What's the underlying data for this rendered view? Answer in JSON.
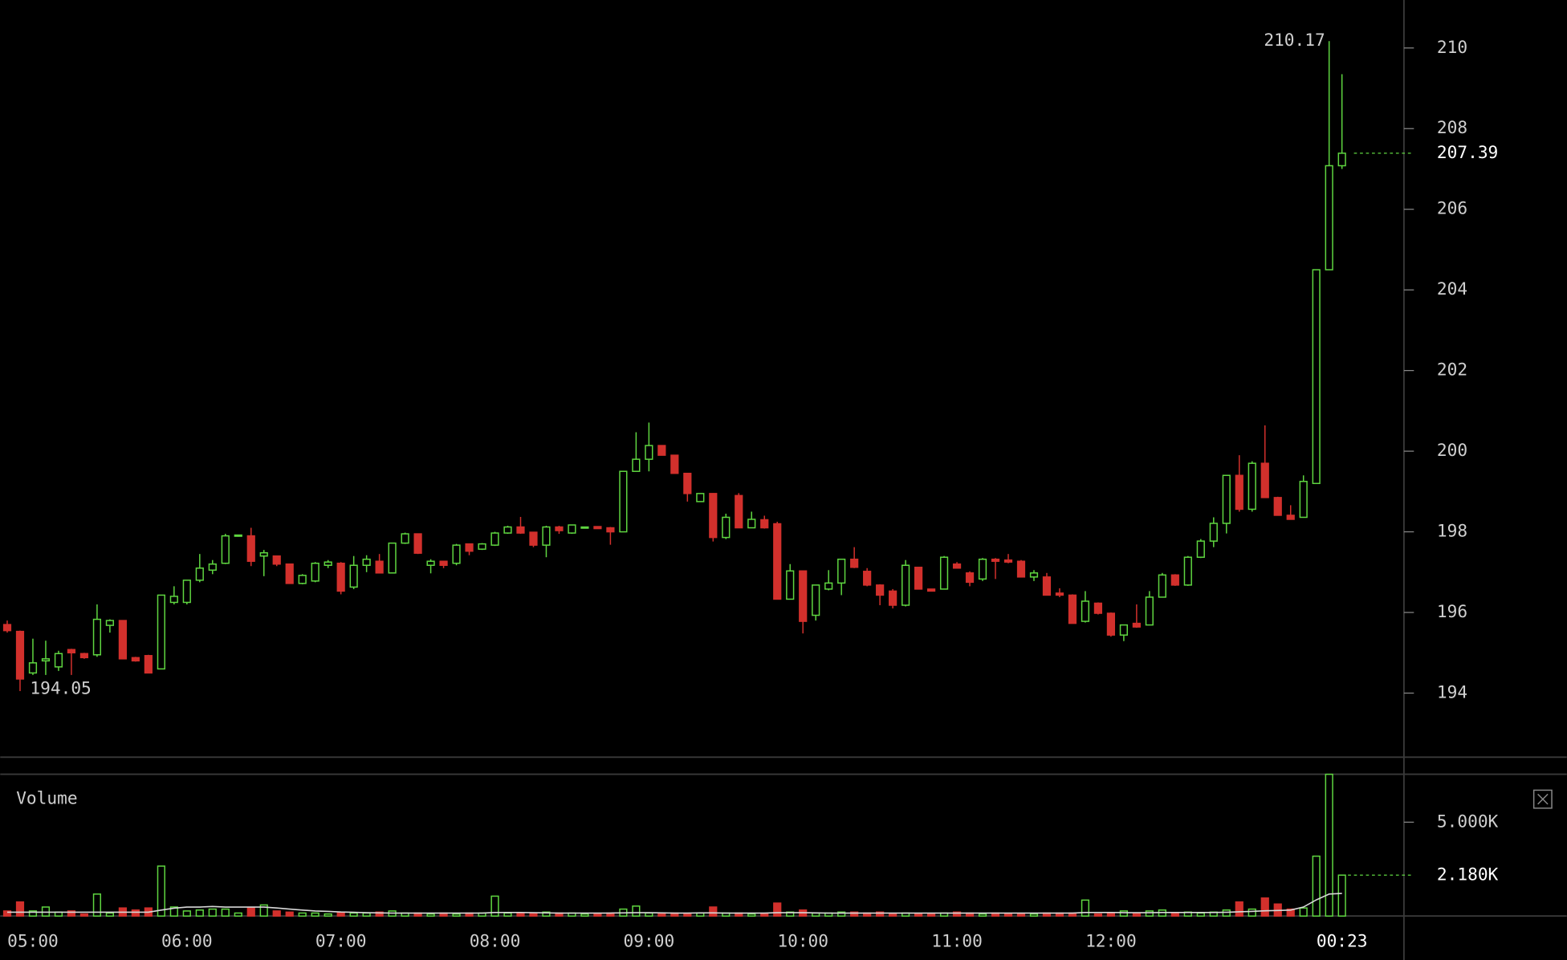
{
  "chart_data": [
    {
      "type": "candlestick",
      "up_color": "#5fd640",
      "down_color": "#d2302c",
      "categories": [
        null,
        null,
        "05:00",
        null,
        null,
        null,
        null,
        null,
        null,
        null,
        null,
        null,
        null,
        null,
        "06:00",
        null,
        null,
        null,
        null,
        null,
        null,
        null,
        null,
        null,
        null,
        null,
        "07:00",
        null,
        null,
        null,
        null,
        null,
        null,
        null,
        null,
        null,
        null,
        null,
        "08:00",
        null,
        null,
        null,
        null,
        null,
        null,
        null,
        null,
        null,
        null,
        null,
        "09:00",
        null,
        null,
        null,
        null,
        null,
        null,
        null,
        null,
        null,
        null,
        null,
        "10:00",
        null,
        null,
        null,
        null,
        null,
        null,
        null,
        null,
        null,
        null,
        null,
        "11:00",
        null,
        null,
        null,
        null,
        null,
        null,
        null,
        null,
        null,
        null,
        null,
        "12:00",
        null,
        null,
        null,
        null,
        null,
        null,
        null,
        null,
        null,
        null,
        null,
        null,
        null,
        null,
        null,
        null,
        null,
        null
      ],
      "countdown": "00:23",
      "ohlc": [
        [
          195.7,
          195.8,
          195.5,
          195.55
        ],
        [
          195.53,
          195.55,
          194.05,
          194.35
        ],
        [
          194.5,
          195.35,
          194.45,
          194.75
        ],
        [
          194.8,
          195.3,
          194.45,
          194.85
        ],
        [
          194.65,
          195.05,
          194.55,
          194.98
        ],
        [
          195.08,
          195.1,
          194.45,
          195.0
        ],
        [
          194.98,
          195.0,
          194.85,
          194.88
        ],
        [
          194.95,
          196.2,
          194.9,
          195.83
        ],
        [
          195.68,
          195.83,
          195.5,
          195.8
        ],
        [
          195.8,
          195.8,
          194.85,
          194.85
        ],
        [
          194.88,
          194.9,
          194.78,
          194.8
        ],
        [
          194.93,
          194.95,
          194.5,
          194.5
        ],
        [
          194.6,
          196.43,
          194.6,
          196.43
        ],
        [
          196.25,
          196.65,
          196.2,
          196.4
        ],
        [
          196.25,
          196.8,
          196.2,
          196.8
        ],
        [
          196.8,
          197.45,
          196.75,
          197.1
        ],
        [
          197.05,
          197.3,
          196.95,
          197.2
        ],
        [
          197.22,
          197.95,
          197.2,
          197.9
        ],
        [
          197.9,
          197.92,
          197.88,
          197.92
        ],
        [
          197.9,
          198.1,
          197.15,
          197.27
        ],
        [
          197.4,
          197.55,
          196.9,
          197.48
        ],
        [
          197.4,
          197.4,
          197.15,
          197.2
        ],
        [
          197.2,
          197.2,
          196.72,
          196.72
        ],
        [
          196.72,
          196.95,
          196.7,
          196.92
        ],
        [
          196.78,
          197.25,
          196.75,
          197.22
        ],
        [
          197.17,
          197.3,
          197.1,
          197.25
        ],
        [
          197.22,
          197.25,
          196.45,
          196.53
        ],
        [
          196.63,
          197.4,
          196.58,
          197.17
        ],
        [
          197.17,
          197.42,
          197.0,
          197.32
        ],
        [
          197.27,
          197.45,
          196.97,
          196.98
        ],
        [
          196.98,
          197.72,
          196.97,
          197.72
        ],
        [
          197.72,
          197.98,
          197.7,
          197.95
        ],
        [
          197.95,
          197.95,
          197.45,
          197.47
        ],
        [
          197.17,
          197.32,
          196.97,
          197.27
        ],
        [
          197.27,
          197.27,
          197.1,
          197.17
        ],
        [
          197.22,
          197.7,
          197.17,
          197.67
        ],
        [
          197.7,
          197.7,
          197.42,
          197.52
        ],
        [
          197.57,
          197.72,
          197.55,
          197.7
        ],
        [
          197.67,
          198.0,
          197.65,
          197.97
        ],
        [
          197.97,
          198.15,
          197.95,
          198.12
        ],
        [
          198.12,
          198.37,
          197.95,
          197.97
        ],
        [
          197.99,
          198.0,
          197.62,
          197.67
        ],
        [
          197.67,
          198.15,
          197.37,
          198.12
        ],
        [
          198.12,
          198.15,
          197.95,
          198.03
        ],
        [
          197.97,
          198.17,
          197.95,
          198.17
        ],
        [
          198.12,
          198.12,
          198.1,
          198.12
        ],
        [
          198.13,
          198.13,
          198.08,
          198.08
        ],
        [
          198.1,
          198.12,
          197.68,
          198.0
        ],
        [
          198.0,
          199.5,
          198.0,
          199.5
        ],
        [
          199.5,
          200.47,
          199.5,
          199.8
        ],
        [
          199.8,
          200.71,
          199.5,
          200.14
        ],
        [
          200.14,
          200.14,
          199.9,
          199.9
        ],
        [
          199.9,
          199.9,
          199.45,
          199.45
        ],
        [
          199.45,
          199.45,
          198.75,
          198.95
        ],
        [
          198.75,
          198.96,
          198.75,
          198.95
        ],
        [
          198.95,
          198.96,
          197.76,
          197.86
        ],
        [
          197.86,
          198.45,
          197.82,
          198.36
        ],
        [
          198.9,
          198.96,
          198.1,
          198.1
        ],
        [
          198.1,
          198.5,
          198.1,
          198.31
        ],
        [
          198.3,
          198.4,
          198.08,
          198.1
        ],
        [
          198.2,
          198.25,
          196.33,
          196.33
        ],
        [
          196.33,
          197.2,
          196.33,
          197.03
        ],
        [
          197.03,
          197.03,
          195.48,
          195.78
        ],
        [
          195.93,
          196.68,
          195.8,
          196.68
        ],
        [
          196.58,
          197.05,
          196.55,
          196.73
        ],
        [
          196.73,
          197.32,
          196.43,
          197.32
        ],
        [
          197.32,
          197.62,
          197.1,
          197.12
        ],
        [
          197.02,
          197.1,
          196.65,
          196.68
        ],
        [
          196.68,
          196.7,
          196.18,
          196.43
        ],
        [
          196.53,
          196.58,
          196.1,
          196.18
        ],
        [
          196.18,
          197.3,
          196.15,
          197.17
        ],
        [
          197.12,
          197.12,
          196.58,
          196.58
        ],
        [
          196.58,
          196.58,
          196.53,
          196.53
        ],
        [
          196.58,
          197.4,
          196.58,
          197.37
        ],
        [
          197.2,
          197.25,
          197.1,
          197.1
        ],
        [
          196.98,
          197.02,
          196.65,
          196.75
        ],
        [
          196.83,
          197.35,
          196.78,
          197.32
        ],
        [
          197.32,
          197.35,
          196.83,
          197.27
        ],
        [
          197.3,
          197.45,
          197.22,
          197.25
        ],
        [
          197.27,
          197.3,
          196.88,
          196.88
        ],
        [
          196.88,
          197.05,
          196.78,
          196.98
        ],
        [
          196.88,
          196.98,
          196.43,
          196.43
        ],
        [
          196.48,
          196.6,
          196.38,
          196.43
        ],
        [
          196.43,
          196.45,
          195.73,
          195.73
        ],
        [
          195.78,
          196.53,
          195.75,
          196.28
        ],
        [
          196.23,
          196.25,
          195.95,
          195.98
        ],
        [
          195.98,
          196.0,
          195.4,
          195.44
        ],
        [
          195.44,
          195.7,
          195.29,
          195.69
        ],
        [
          195.73,
          196.2,
          195.62,
          195.64
        ],
        [
          195.69,
          196.53,
          195.69,
          196.38
        ],
        [
          196.38,
          196.98,
          196.38,
          196.93
        ],
        [
          196.93,
          196.95,
          196.66,
          196.68
        ],
        [
          196.68,
          197.4,
          196.66,
          197.37
        ],
        [
          197.37,
          197.82,
          197.35,
          197.77
        ],
        [
          197.77,
          198.36,
          197.62,
          198.21
        ],
        [
          198.21,
          199.4,
          197.96,
          199.4
        ],
        [
          199.4,
          199.9,
          198.5,
          198.56
        ],
        [
          198.56,
          199.75,
          198.5,
          199.7
        ],
        [
          199.7,
          200.64,
          198.85,
          198.85
        ],
        [
          198.85,
          198.87,
          198.4,
          198.41
        ],
        [
          198.41,
          198.66,
          198.3,
          198.31
        ],
        [
          198.36,
          199.4,
          198.36,
          199.25
        ],
        [
          199.2,
          204.5,
          199.2,
          204.5
        ],
        [
          204.5,
          210.17,
          204.5,
          207.08
        ],
        [
          207.08,
          209.35,
          207.0,
          207.39
        ]
      ],
      "high_label": 210.17,
      "low_label": 194.05,
      "last_label": 207.39,
      "ylim": [
        192.41,
        211.19
      ],
      "yticks": [
        194,
        196,
        198,
        200,
        202,
        204,
        206,
        208,
        210
      ]
    },
    {
      "type": "volume",
      "title": "Volume",
      "color": "#5fd640",
      "ma_color": "#d8d8d8",
      "values": [
        270,
        750,
        270,
        480,
        210,
        270,
        110,
        1170,
        160,
        430,
        320,
        430,
        2660,
        480,
        270,
        320,
        370,
        370,
        160,
        430,
        590,
        270,
        210,
        160,
        160,
        110,
        210,
        160,
        160,
        210,
        270,
        160,
        160,
        110,
        160,
        110,
        160,
        160,
        1060,
        160,
        160,
        160,
        210,
        160,
        160,
        110,
        110,
        160,
        370,
        530,
        160,
        160,
        160,
        110,
        160,
        480,
        160,
        160,
        110,
        110,
        690,
        210,
        320,
        160,
        160,
        210,
        210,
        160,
        210,
        110,
        160,
        110,
        110,
        160,
        210,
        160,
        110,
        160,
        110,
        110,
        110,
        160,
        160,
        160,
        850,
        110,
        160,
        270,
        160,
        270,
        320,
        160,
        210,
        160,
        210,
        320,
        750,
        370,
        960,
        640,
        370,
        430,
        3190,
        7550,
        2180
      ],
      "ma": [
        210,
        210,
        210,
        210,
        210,
        210,
        210,
        210,
        210,
        210,
        210,
        210,
        320,
        420,
        480,
        480,
        510,
        480,
        480,
        480,
        480,
        430,
        370,
        320,
        270,
        250,
        220,
        200,
        180,
        170,
        160,
        160,
        160,
        160,
        160,
        160,
        160,
        160,
        190,
        190,
        190,
        180,
        170,
        160,
        160,
        160,
        160,
        160,
        170,
        180,
        180,
        170,
        160,
        160,
        170,
        170,
        160,
        160,
        160,
        160,
        180,
        180,
        180,
        170,
        160,
        160,
        160,
        160,
        160,
        160,
        160,
        160,
        160,
        160,
        160,
        160,
        160,
        160,
        160,
        160,
        160,
        160,
        160,
        160,
        190,
        190,
        190,
        180,
        180,
        180,
        190,
        190,
        190,
        190,
        190,
        200,
        230,
        250,
        280,
        300,
        320,
        480,
        860,
        1170,
        1200
      ],
      "last_label": {
        "value": 2180,
        "label": "2.180K"
      },
      "ylim": [
        0,
        7556
      ],
      "yticks": [
        {
          "value": 5000,
          "label": "5.000K"
        }
      ]
    }
  ]
}
